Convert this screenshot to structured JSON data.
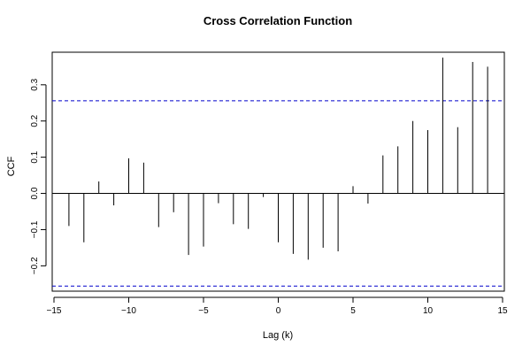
{
  "chart_data": {
    "type": "bar",
    "title": "Cross Correlation Function",
    "xlabel": "Lag (k)",
    "ylabel": "CCF",
    "xlim": [
      -15,
      15
    ],
    "ylim": [
      -0.27,
      0.39
    ],
    "x_ticks": [
      -15,
      -10,
      -5,
      0,
      5,
      10,
      15
    ],
    "x_tick_labels": [
      "−15",
      "−10",
      "−5",
      "0",
      "5",
      "10",
      "15"
    ],
    "y_ticks": [
      -0.2,
      -0.1,
      0.0,
      0.1,
      0.2,
      0.3
    ],
    "y_tick_labels": [
      "−0.2",
      "−0.1",
      "0.0",
      "0.1",
      "0.2",
      "0.3"
    ],
    "lags": [
      -14,
      -13,
      -12,
      -11,
      -10,
      -9,
      -8,
      -7,
      -6,
      -5,
      -4,
      -3,
      -2,
      -1,
      0,
      1,
      2,
      3,
      4,
      5,
      6,
      7,
      8,
      9,
      10,
      11,
      12,
      13,
      14
    ],
    "values": [
      -0.09,
      -0.135,
      0.033,
      -0.033,
      0.097,
      0.085,
      -0.093,
      -0.052,
      -0.17,
      -0.147,
      -0.027,
      -0.085,
      -0.098,
      -0.01,
      -0.135,
      -0.167,
      -0.183,
      -0.15,
      -0.16,
      0.02,
      -0.028,
      0.105,
      0.13,
      0.2,
      0.175,
      0.375,
      0.183,
      0.363,
      0.35
    ],
    "confidence_band": [
      0.256,
      -0.256
    ],
    "colors": {
      "bars": "#000000",
      "band": "#0000cc",
      "axis": "#000000"
    },
    "grid": false
  }
}
